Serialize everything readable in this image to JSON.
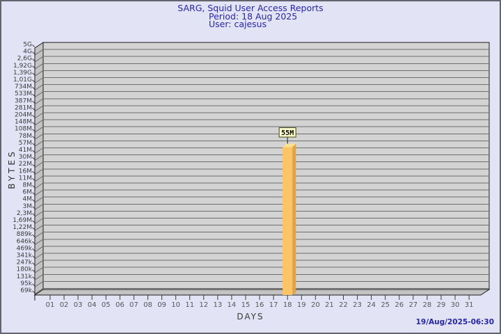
{
  "page": {
    "background": "#E3E3F6",
    "border_color": "#64646E",
    "title_color": "#2626A6"
  },
  "footer": {
    "timestamp": "19/Aug/2025-06:30"
  },
  "chart_data": {
    "type": "bar",
    "title": "SARG, Squid User Access Reports",
    "subtitle1": "Period: 18 Aug 2025",
    "subtitle2": "User: cajesus",
    "xlabel": "DAYS",
    "ylabel": "BYTES",
    "y_scale": "log",
    "grid": "horizontal",
    "legend_position": "none",
    "x_categories": [
      "01",
      "02",
      "03",
      "04",
      "05",
      "06",
      "07",
      "08",
      "09",
      "10",
      "11",
      "12",
      "13",
      "14",
      "15",
      "16",
      "17",
      "18",
      "19",
      "20",
      "21",
      "22",
      "23",
      "24",
      "25",
      "26",
      "27",
      "28",
      "29",
      "30",
      "31"
    ],
    "y_tick_labels": [
      "5G",
      "4G",
      "2,6G",
      "1,92G",
      "1,39G",
      "1,01G",
      "734M",
      "533M",
      "387M",
      "281M",
      "204M",
      "148M",
      "108M",
      "78M",
      "57M",
      "41M",
      "30M",
      "22M",
      "16M",
      "11M",
      "8M",
      "6M",
      "4M",
      "3M",
      "2,3M",
      "1,69M",
      "1,22M",
      "889k",
      "646k",
      "469k",
      "341k",
      "247k",
      "180k",
      "131k",
      "95k",
      "69k"
    ],
    "bars": [
      {
        "day": "18",
        "value_label": "55M",
        "value_bytes": 55000000
      }
    ],
    "colors": {
      "wall": "#D3D3D3",
      "wall_side": "#C3C3C3",
      "grid": "#6E6E6E",
      "edge": "#1A1A1A",
      "bar_front": "#FDC466",
      "bar_side": "#DFA348",
      "bar_top": "#FBDF92",
      "value_box_bg": "#FCFCC9",
      "value_box_border": "#44441A",
      "value_text": "#000000",
      "y_tick_text": "#3A3A3A",
      "x_tick_text": "#565656"
    }
  }
}
